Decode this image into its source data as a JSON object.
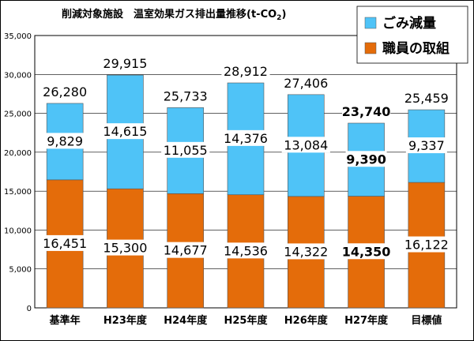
{
  "chart_data": {
    "type": "bar",
    "stacked": true,
    "title_main": "削減対象施設　温室効果ガス排出量推移",
    "title_unit": "(t-CO",
    "title_unit_sub": "2",
    "title_unit_close": ")",
    "categories": [
      "基準年",
      "H23年度",
      "H24年度",
      "H25年度",
      "H26年度",
      "H27年度",
      "目標値"
    ],
    "series": [
      {
        "name": "職員の取組",
        "color": "#E46C0A",
        "values": [
          16451,
          15300,
          14677,
          14536,
          14322,
          14350,
          16122
        ]
      },
      {
        "name": "ごみ減量",
        "color": "#4FC3F7",
        "values": [
          9829,
          14615,
          11055,
          14376,
          13084,
          9390,
          9337
        ]
      }
    ],
    "totals": [
      26280,
      29915,
      25733,
      28912,
      27406,
      23740,
      25459
    ],
    "total_labels": [
      "26,280",
      "29,915",
      "25,733",
      "28,912",
      "27,406",
      "23,740",
      "25,459"
    ],
    "series_labels": [
      [
        "16,451",
        "15,300",
        "14,677",
        "14,536",
        "14,322",
        "14,350",
        "16,122"
      ],
      [
        "9,829",
        "14,615",
        "11,055",
        "14,376",
        "13,084",
        "9,390",
        "9,337"
      ]
    ],
    "bold_category_index": 5,
    "ylim": [
      0,
      35000
    ],
    "yticks": [
      0,
      5000,
      10000,
      15000,
      20000,
      25000,
      30000,
      35000
    ],
    "ytick_labels": [
      "0",
      "5,000",
      "10,000",
      "15,000",
      "20,000",
      "25,000",
      "30,000",
      "35,000"
    ],
    "grid": true,
    "legend_position": "top-right",
    "legend": [
      "ごみ減量",
      "職員の取組"
    ]
  }
}
